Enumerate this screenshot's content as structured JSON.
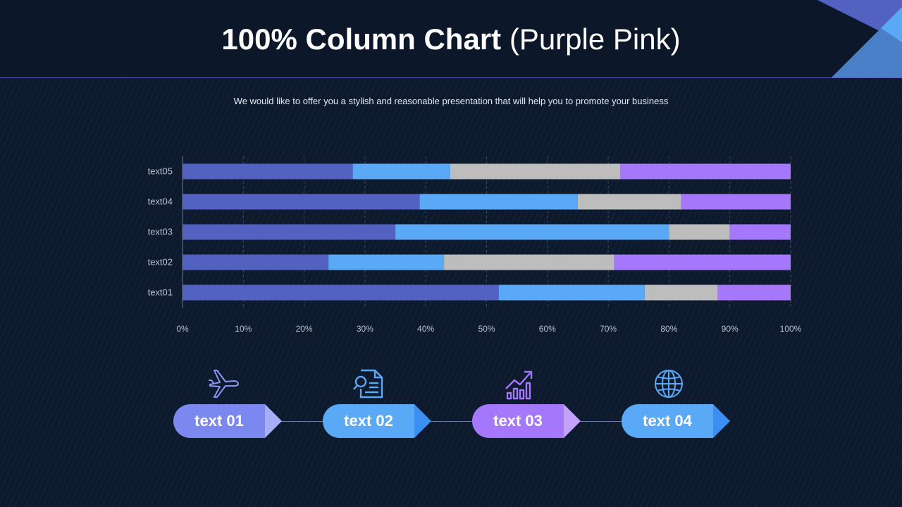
{
  "header": {
    "title_bold": "100% Column Chart",
    "title_light": "(Purple Pink)",
    "subtitle": "We would like to offer you a stylish and reasonable presentation that will help you to promote your business"
  },
  "chart_data": {
    "type": "bar",
    "orientation": "horizontal",
    "stacked": "percent",
    "categories": [
      "text01",
      "text02",
      "text03",
      "text04",
      "text05"
    ],
    "series": [
      {
        "values": [
          52,
          24,
          35,
          39,
          28
        ],
        "color": "#5361c1"
      },
      {
        "values": [
          24,
          19,
          45,
          26,
          16
        ],
        "color": "#5aa9f6"
      },
      {
        "values": [
          12,
          28,
          10,
          17,
          28
        ],
        "color": "#bdbdbd"
      },
      {
        "values": [
          12,
          29,
          10,
          18,
          28
        ],
        "color": "#a477fb"
      }
    ],
    "xticks": [
      "0%",
      "10%",
      "20%",
      "30%",
      "40%",
      "50%",
      "60%",
      "70%",
      "80%",
      "90%",
      "100%"
    ],
    "xlim": [
      0,
      100
    ],
    "grid": true
  },
  "steps": [
    {
      "label": "text 01",
      "icon": "airplane-icon",
      "color": "#7b88f0",
      "arrow_color": "#a8aef5"
    },
    {
      "label": "text 02",
      "icon": "document-search-icon",
      "color": "#5aa9f6",
      "arrow_color": "#3b8ff0"
    },
    {
      "label": "text 03",
      "icon": "growth-chart-icon",
      "color": "#a477fb",
      "arrow_color": "#c3a2fc"
    },
    {
      "label": "text 04",
      "icon": "globe-icon",
      "color": "#5aa9f6",
      "arrow_color": "#3b8ff0"
    }
  ],
  "colors": {
    "background": "#0d1a2e",
    "accent_line": "#5b5fb8",
    "icon": "#8f95f5"
  }
}
